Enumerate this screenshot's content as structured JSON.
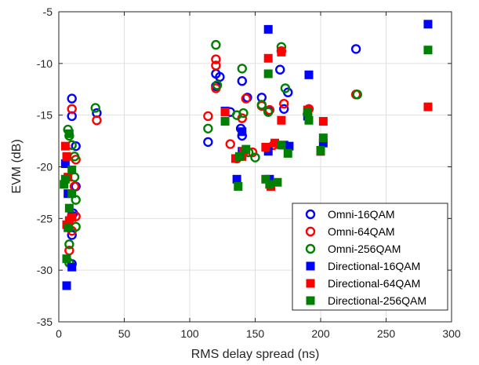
{
  "chart_data": {
    "type": "scatter",
    "xlabel": "RMS delay spread (ns)",
    "ylabel": "EVM (dB)",
    "xlim": [
      0,
      300
    ],
    "ylim": [
      -35,
      -5
    ],
    "xticks": [
      0,
      50,
      100,
      150,
      200,
      250,
      300
    ],
    "yticks": [
      -35,
      -30,
      -25,
      -20,
      -15,
      -10,
      -5
    ],
    "grid": true,
    "legend_position": "bottom-right",
    "series": [
      {
        "name": "Omni-16QAM",
        "marker": "circle",
        "color": "#0000ff",
        "points": [
          [
            10,
            -13.4
          ],
          [
            10,
            -15.1
          ],
          [
            13,
            -18.0
          ],
          [
            13,
            -21.9
          ],
          [
            11,
            -24.5
          ],
          [
            10,
            -26.6
          ],
          [
            10,
            -29.4
          ],
          [
            29,
            -14.8
          ],
          [
            114,
            -17.6
          ],
          [
            120,
            -11.0
          ],
          [
            120,
            -12.2
          ],
          [
            123,
            -11.3
          ],
          [
            131,
            -14.7
          ],
          [
            139,
            -16.3
          ],
          [
            140,
            -17.0
          ],
          [
            140,
            -11.7
          ],
          [
            144,
            -13.3
          ],
          [
            155,
            -13.3
          ],
          [
            160,
            -14.6
          ],
          [
            169,
            -10.6
          ],
          [
            172,
            -14.4
          ],
          [
            175,
            -12.8
          ],
          [
            227,
            -8.6
          ]
        ]
      },
      {
        "name": "Omni-64QAM",
        "marker": "circle",
        "color": "#ff0000",
        "points": [
          [
            10,
            -14.4
          ],
          [
            13,
            -19.3
          ],
          [
            12,
            -21.9
          ],
          [
            13,
            -24.8
          ],
          [
            10,
            -26.2
          ],
          [
            8,
            -28.1
          ],
          [
            29,
            -15.5
          ],
          [
            114,
            -15.1
          ],
          [
            120,
            -10.2
          ],
          [
            120,
            -9.6
          ],
          [
            120,
            -12.4
          ],
          [
            131,
            -17.8
          ],
          [
            136,
            -19.2
          ],
          [
            140,
            -15.3
          ],
          [
            143,
            -13.4
          ],
          [
            148,
            -18.6
          ],
          [
            155,
            -14.1
          ],
          [
            161,
            -14.5
          ],
          [
            164,
            -17.9
          ],
          [
            170,
            -8.8
          ],
          [
            172,
            -13.9
          ],
          [
            191,
            -14.4
          ],
          [
            227,
            -13.0
          ]
        ]
      },
      {
        "name": "Omni-256QAM",
        "marker": "circle",
        "color": "#008000",
        "points": [
          [
            7,
            -16.4
          ],
          [
            8,
            -17.0
          ],
          [
            10,
            -17.9
          ],
          [
            12,
            -19.0
          ],
          [
            12,
            -21.0
          ],
          [
            13,
            -23.2
          ],
          [
            10,
            -24.7
          ],
          [
            13,
            -25.8
          ],
          [
            8,
            -27.5
          ],
          [
            8,
            -29.3
          ],
          [
            28,
            -14.3
          ],
          [
            114,
            -16.3
          ],
          [
            120,
            -8.2
          ],
          [
            121,
            -12.1
          ],
          [
            136,
            -15.0
          ],
          [
            140,
            -10.5
          ],
          [
            141,
            -14.8
          ],
          [
            145,
            -18.6
          ],
          [
            150,
            -19.1
          ],
          [
            155,
            -14.0
          ],
          [
            160,
            -14.7
          ],
          [
            170,
            -8.4
          ],
          [
            173,
            -12.4
          ],
          [
            190,
            -14.9
          ],
          [
            228,
            -13.0
          ]
        ]
      },
      {
        "name": "Directional-16QAM",
        "marker": "square",
        "color": "#0000ff",
        "points": [
          [
            5,
            -19.7
          ],
          [
            7,
            -22.6
          ],
          [
            6,
            -31.5
          ],
          [
            10,
            -29.7
          ],
          [
            10,
            -24.8
          ],
          [
            127,
            -14.6
          ],
          [
            136,
            -21.2
          ],
          [
            140,
            -16.6
          ],
          [
            140,
            -18.5
          ],
          [
            160,
            -6.7
          ],
          [
            160,
            -18.5
          ],
          [
            161,
            -21.2
          ],
          [
            172,
            -17.9
          ],
          [
            176,
            -18.0
          ],
          [
            190,
            -15.1
          ],
          [
            191,
            -11.1
          ],
          [
            200,
            -18.5
          ],
          [
            202,
            -17.7
          ],
          [
            282,
            -6.2
          ]
        ]
      },
      {
        "name": "Directional-64QAM",
        "marker": "square",
        "color": "#ff0000",
        "points": [
          [
            5,
            -18.0
          ],
          [
            6,
            -19.0
          ],
          [
            7,
            -21.0
          ],
          [
            8,
            -25.2
          ],
          [
            6,
            -25.6
          ],
          [
            10,
            -24.9
          ],
          [
            127,
            -14.7
          ],
          [
            135,
            -19.2
          ],
          [
            140,
            -19.0
          ],
          [
            141,
            -18.5
          ],
          [
            160,
            -9.5
          ],
          [
            158,
            -18.1
          ],
          [
            162,
            -21.9
          ],
          [
            165,
            -17.7
          ],
          [
            170,
            -8.9
          ],
          [
            170,
            -15.5
          ],
          [
            190,
            -14.5
          ],
          [
            200,
            -18.5
          ],
          [
            202,
            -15.6
          ],
          [
            282,
            -14.2
          ]
        ]
      },
      {
        "name": "Directional-256QAM",
        "marker": "square",
        "color": "#008000",
        "points": [
          [
            4,
            -21.7
          ],
          [
            5,
            -21.2
          ],
          [
            7,
            -25.9
          ],
          [
            6,
            -28.9
          ],
          [
            8,
            -24.0
          ],
          [
            8,
            -16.8
          ],
          [
            10,
            -20.3
          ],
          [
            10,
            -22.6
          ],
          [
            127,
            -15.6
          ],
          [
            137,
            -21.9
          ],
          [
            138,
            -19.0
          ],
          [
            143,
            -18.3
          ],
          [
            160,
            -11.0
          ],
          [
            158,
            -21.2
          ],
          [
            161,
            -21.7
          ],
          [
            167,
            -21.5
          ],
          [
            170,
            -17.9
          ],
          [
            175,
            -18.7
          ],
          [
            190,
            -14.7
          ],
          [
            191,
            -15.5
          ],
          [
            200,
            -18.4
          ],
          [
            202,
            -17.2
          ],
          [
            282,
            -8.7
          ]
        ]
      }
    ]
  }
}
